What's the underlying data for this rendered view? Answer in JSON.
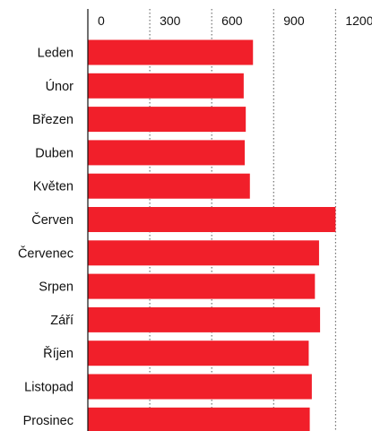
{
  "chart_data": {
    "type": "bar",
    "orientation": "horizontal",
    "title": "",
    "xlabel": "",
    "ylabel": "",
    "xlim": [
      0,
      1200
    ],
    "x_ticks": [
      0,
      300,
      600,
      900,
      1200
    ],
    "grid": "dotted vertical",
    "categories": [
      "Leden",
      "Únor",
      "Březen",
      "Duben",
      "Květen",
      "Červen",
      "Červenec",
      "Srpen",
      "Září",
      "Říjen",
      "Listopad",
      "Prosinec"
    ],
    "values": [
      800,
      755,
      765,
      760,
      785,
      1200,
      1120,
      1100,
      1125,
      1070,
      1085,
      1075
    ],
    "bar_color": "#f11f2a",
    "axis_color": "#111111",
    "grid_color": "#555555"
  }
}
